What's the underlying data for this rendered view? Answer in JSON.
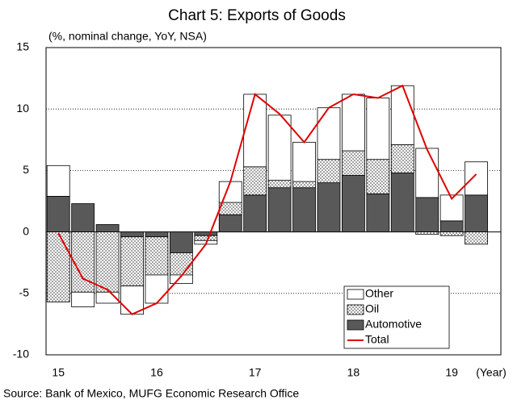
{
  "chart_data": {
    "type": "stacked_bar_line",
    "title": "Chart 5: Exports of Goods",
    "subtitle": "(%, nominal change, YoY, NSA)",
    "x_label": "(Year)",
    "source": "Source: Bank of Mexico, MUFG Economic Research Office",
    "categories": [
      "15",
      null,
      null,
      null,
      "16",
      null,
      null,
      null,
      "17",
      null,
      null,
      null,
      "18",
      null,
      null,
      null,
      "19",
      null
    ],
    "series": [
      {
        "name": "Automotive",
        "color": "#595959",
        "values": [
          2.9,
          2.3,
          0.6,
          -0.4,
          -0.4,
          -1.7,
          -0.3,
          1.4,
          3.0,
          3.6,
          3.6,
          4.0,
          4.6,
          3.1,
          4.8,
          2.8,
          0.9,
          3.0
        ]
      },
      {
        "name": "Oil",
        "color": "#ffffff",
        "pattern": "dotted",
        "values": [
          -5.7,
          -4.9,
          -4.9,
          -4.0,
          -3.1,
          -1.8,
          -0.4,
          1.0,
          2.3,
          0.6,
          0.5,
          1.9,
          2.0,
          2.8,
          2.3,
          -0.2,
          -0.3,
          -1.0
        ]
      },
      {
        "name": "Other",
        "color": "#ffffff",
        "values": [
          2.5,
          -1.2,
          -0.9,
          -2.3,
          -2.3,
          -0.7,
          -0.3,
          1.7,
          5.9,
          5.3,
          3.2,
          4.2,
          4.6,
          5.0,
          4.8,
          4.0,
          2.1,
          2.7
        ]
      },
      {
        "name": "Total",
        "type": "line",
        "color": "#e00000",
        "values": [
          -0.1,
          -3.8,
          -4.7,
          -6.7,
          -5.8,
          -3.6,
          -1.0,
          4.1,
          11.2,
          9.6,
          7.3,
          10.1,
          11.2,
          10.9,
          11.9,
          6.7,
          2.7,
          4.7
        ]
      }
    ],
    "ylim": [
      -10,
      15
    ],
    "yticks": [
      15,
      10,
      5,
      0,
      -5,
      -10
    ],
    "grid": true,
    "legend": "lower right"
  }
}
